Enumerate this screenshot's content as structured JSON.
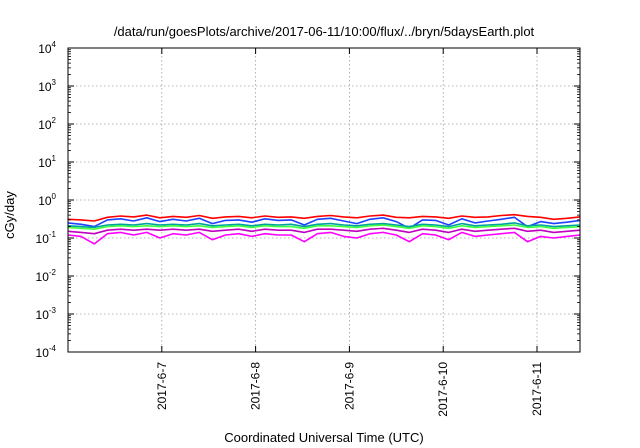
{
  "chart_data": {
    "type": "line",
    "title": "/data/run/goesPlots/archive/2017-06-11/10:00/flux/../bryn/5daysEarth.plot",
    "xlabel": "Coordinated Universal Time (UTC)",
    "ylabel": "cGy/day",
    "yscale": "log",
    "ylim": [
      0.0001,
      10000
    ],
    "yticks": [
      {
        "base": "10",
        "exp": "-4",
        "value": 0.0001
      },
      {
        "base": "10",
        "exp": "-3",
        "value": 0.001
      },
      {
        "base": "10",
        "exp": "-2",
        "value": 0.01
      },
      {
        "base": "10",
        "exp": "-1",
        "value": 0.1
      },
      {
        "base": "10",
        "exp": "0",
        "value": 1
      },
      {
        "base": "10",
        "exp": "1",
        "value": 10
      },
      {
        "base": "10",
        "exp": "2",
        "value": 100
      },
      {
        "base": "10",
        "exp": "3",
        "value": 1000
      },
      {
        "base": "10",
        "exp": "4",
        "value": 10000
      }
    ],
    "xlim": [
      "2017-06-06T00:00",
      "2017-06-11T11:00"
    ],
    "xticks": [
      {
        "label": "2017-6-7",
        "value": "2017-06-07T00:00"
      },
      {
        "label": "2017-6-8",
        "value": "2017-06-08T00:00"
      },
      {
        "label": "2017-6-9",
        "value": "2017-06-09T00:00"
      },
      {
        "label": "2017-6-10",
        "value": "2017-06-10T00:00"
      },
      {
        "label": "2017-6-11",
        "value": "2017-06-11T00:00"
      }
    ],
    "grid": true,
    "legend": "none",
    "series": [
      {
        "color": "#ff0000",
        "values": [
          0.31,
          0.3,
          0.28,
          0.35,
          0.38,
          0.36,
          0.4,
          0.34,
          0.37,
          0.35,
          0.39,
          0.33,
          0.36,
          0.37,
          0.34,
          0.38,
          0.35,
          0.36,
          0.33,
          0.37,
          0.39,
          0.36,
          0.34,
          0.38,
          0.4,
          0.35,
          0.34,
          0.37,
          0.36,
          0.33,
          0.38,
          0.35,
          0.36,
          0.39,
          0.41,
          0.37,
          0.35,
          0.31,
          0.33,
          0.36
        ]
      },
      {
        "color": "#2040ff",
        "values": [
          0.25,
          0.23,
          0.2,
          0.3,
          0.32,
          0.28,
          0.34,
          0.27,
          0.31,
          0.28,
          0.33,
          0.24,
          0.29,
          0.3,
          0.26,
          0.32,
          0.29,
          0.3,
          0.22,
          0.31,
          0.33,
          0.28,
          0.24,
          0.31,
          0.34,
          0.27,
          0.18,
          0.3,
          0.29,
          0.22,
          0.32,
          0.25,
          0.28,
          0.31,
          0.35,
          0.2,
          0.27,
          0.24,
          0.26,
          0.29
        ]
      },
      {
        "color": "#00a0a0",
        "values": [
          0.21,
          0.2,
          0.19,
          0.22,
          0.23,
          0.22,
          0.24,
          0.22,
          0.23,
          0.22,
          0.24,
          0.21,
          0.22,
          0.23,
          0.21,
          0.23,
          0.22,
          0.23,
          0.2,
          0.23,
          0.24,
          0.22,
          0.21,
          0.23,
          0.24,
          0.22,
          0.2,
          0.23,
          0.22,
          0.2,
          0.24,
          0.21,
          0.22,
          0.23,
          0.25,
          0.21,
          0.22,
          0.2,
          0.21,
          0.22
        ]
      },
      {
        "color": "#40ff40",
        "values": [
          0.19,
          0.18,
          0.17,
          0.2,
          0.21,
          0.2,
          0.21,
          0.2,
          0.21,
          0.2,
          0.21,
          0.19,
          0.2,
          0.21,
          0.19,
          0.21,
          0.2,
          0.2,
          0.18,
          0.21,
          0.21,
          0.2,
          0.19,
          0.21,
          0.22,
          0.2,
          0.18,
          0.21,
          0.2,
          0.18,
          0.21,
          0.19,
          0.2,
          0.21,
          0.22,
          0.19,
          0.2,
          0.18,
          0.19,
          0.2
        ]
      },
      {
        "color": "#c000c0",
        "values": [
          0.15,
          0.14,
          0.13,
          0.16,
          0.17,
          0.16,
          0.17,
          0.16,
          0.17,
          0.16,
          0.17,
          0.15,
          0.16,
          0.17,
          0.15,
          0.17,
          0.16,
          0.16,
          0.14,
          0.17,
          0.17,
          0.16,
          0.15,
          0.17,
          0.18,
          0.16,
          0.14,
          0.17,
          0.16,
          0.14,
          0.17,
          0.15,
          0.16,
          0.17,
          0.18,
          0.15,
          0.16,
          0.14,
          0.15,
          0.16
        ]
      },
      {
        "color": "#ff00ff",
        "values": [
          0.12,
          0.11,
          0.07,
          0.13,
          0.14,
          0.12,
          0.14,
          0.1,
          0.13,
          0.12,
          0.14,
          0.09,
          0.12,
          0.13,
          0.11,
          0.13,
          0.12,
          0.12,
          0.08,
          0.13,
          0.14,
          0.11,
          0.1,
          0.13,
          0.14,
          0.12,
          0.08,
          0.13,
          0.12,
          0.09,
          0.14,
          0.11,
          0.12,
          0.13,
          0.14,
          0.08,
          0.11,
          0.1,
          0.11,
          0.12
        ]
      }
    ]
  }
}
